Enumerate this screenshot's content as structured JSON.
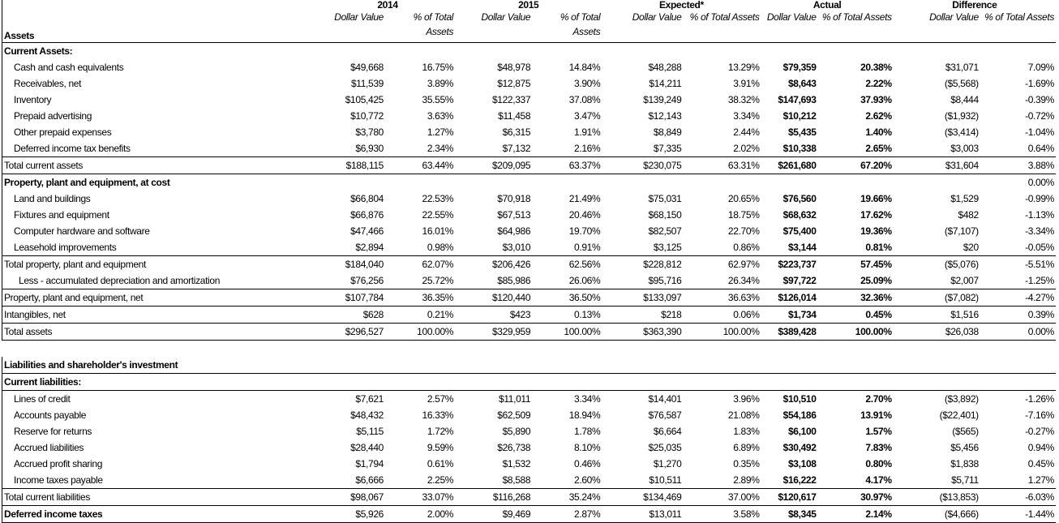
{
  "header": {
    "label": "Assets",
    "groups": [
      "2014",
      "2015",
      "Expected*",
      "Actual",
      "Difference"
    ],
    "columns": [
      "Dollar Value",
      "% of Total Assets",
      "Dollar Value",
      "% of Total Assets",
      "Dollar Value",
      "% of Total Assets",
      "Dollar Value",
      "% of Total Assets",
      "Dollar Value",
      "% of Total Assets"
    ]
  },
  "table": {
    "rows": [
      {
        "label": "Current Assets:"
      },
      {
        "label": "Cash and cash equivalents",
        "cells": [
          "$49,668",
          "16.75%",
          "$48,978",
          "14.84%",
          "$48,288",
          "13.29%",
          "$79,359",
          "20.38%",
          "$31,071",
          "7.09%"
        ]
      },
      {
        "label": "Receivables, net",
        "cells": [
          "$11,539",
          "3.89%",
          "$12,875",
          "3.90%",
          "$14,211",
          "3.91%",
          "$8,643",
          "2.22%",
          "($5,568)",
          "-1.69%"
        ]
      },
      {
        "label": "Inventory",
        "cells": [
          "$105,425",
          "35.55%",
          "$122,337",
          "37.08%",
          "$139,249",
          "38.32%",
          "$147,693",
          "37.93%",
          "$8,444",
          "-0.39%"
        ]
      },
      {
        "label": "Prepaid advertising",
        "cells": [
          "$10,772",
          "3.63%",
          "$11,458",
          "3.47%",
          "$12,143",
          "3.34%",
          "$10,212",
          "2.62%",
          "($1,932)",
          "-0.72%"
        ]
      },
      {
        "label": "Other prepaid expenses",
        "cells": [
          "$3,780",
          "1.27%",
          "$6,315",
          "1.91%",
          "$8,849",
          "2.44%",
          "$5,435",
          "1.40%",
          "($3,414)",
          "-1.04%"
        ]
      },
      {
        "label": "Deferred income tax benefits",
        "cells": [
          "$6,930",
          "2.34%",
          "$7,132",
          "2.16%",
          "$7,335",
          "2.02%",
          "$10,338",
          "2.65%",
          "$3,003",
          "0.64%"
        ]
      },
      {
        "label": "Total current assets",
        "cells": [
          "$188,115",
          "63.44%",
          "$209,095",
          "63.37%",
          "$230,075",
          "63.31%",
          "$261,680",
          "67.20%",
          "$31,604",
          "3.88%"
        ]
      },
      {
        "label": "Property, plant and equipment, at cost",
        "cells": [
          null,
          null,
          null,
          null,
          null,
          null,
          null,
          null,
          null,
          "0.00%"
        ]
      },
      {
        "label": "Land and buildings",
        "cells": [
          "$66,804",
          "22.53%",
          "$70,918",
          "21.49%",
          "$75,031",
          "20.65%",
          "$76,560",
          "19.66%",
          "$1,529",
          "-0.99%"
        ]
      },
      {
        "label": "Fixtures and equipment",
        "cells": [
          "$66,876",
          "22.55%",
          "$67,513",
          "20.46%",
          "$68,150",
          "18.75%",
          "$68,632",
          "17.62%",
          "$482",
          "-1.13%"
        ]
      },
      {
        "label": "Computer hardware and software",
        "cells": [
          "$47,466",
          "16.01%",
          "$64,986",
          "19.70%",
          "$82,507",
          "22.70%",
          "$75,400",
          "19.36%",
          "($7,107)",
          "-3.34%"
        ]
      },
      {
        "label": "Leasehold improvements",
        "cells": [
          "$2,894",
          "0.98%",
          "$3,010",
          "0.91%",
          "$3,125",
          "0.86%",
          "$3,144",
          "0.81%",
          "$20",
          "-0.05%"
        ]
      },
      {
        "label": "Total property, plant and equipment",
        "cells": [
          "$184,040",
          "62.07%",
          "$206,426",
          "62.56%",
          "$228,812",
          "62.97%",
          "$223,737",
          "57.45%",
          "($5,076)",
          "-5.51%"
        ]
      },
      {
        "label": "Less - accumulated depreciation and amortization",
        "cells": [
          "$76,256",
          "25.72%",
          "$85,986",
          "26.06%",
          "$95,716",
          "26.34%",
          "$97,722",
          "25.09%",
          "$2,007",
          "-1.25%"
        ]
      },
      {
        "label": "Property, plant and equipment, net",
        "cells": [
          "$107,784",
          "36.35%",
          "$120,440",
          "36.50%",
          "$133,097",
          "36.63%",
          "$126,014",
          "32.36%",
          "($7,082)",
          "-4.27%"
        ]
      },
      {
        "label": "Intangibles, net",
        "cells": [
          "$628",
          "0.21%",
          "$423",
          "0.13%",
          "$218",
          "0.06%",
          "$1,734",
          "0.45%",
          "$1,516",
          "0.39%"
        ]
      },
      {
        "label": "Total assets",
        "cells": [
          "$296,527",
          "100.00%",
          "$329,959",
          "100.00%",
          "$363,390",
          "100.00%",
          "$389,428",
          "100.00%",
          "$26,038",
          "0.00%"
        ]
      },
      {
        "label": "Liabilities and shareholder's investment"
      },
      {
        "label": "Current liabilities:"
      },
      {
        "label": "Lines of credit",
        "cells": [
          "$7,621",
          "2.57%",
          "$11,011",
          "3.34%",
          "$14,401",
          "3.96%",
          "$10,510",
          "2.70%",
          "($3,892)",
          "-1.26%"
        ]
      },
      {
        "label": "Accounts payable",
        "cells": [
          "$48,432",
          "16.33%",
          "$62,509",
          "18.94%",
          "$76,587",
          "21.08%",
          "$54,186",
          "13.91%",
          "($22,401)",
          "-7.16%"
        ]
      },
      {
        "label": "Reserve for returns",
        "cells": [
          "$5,115",
          "1.72%",
          "$5,890",
          "1.78%",
          "$6,664",
          "1.83%",
          "$6,100",
          "1.57%",
          "($565)",
          "-0.27%"
        ]
      },
      {
        "label": "Accrued liabilities",
        "cells": [
          "$28,440",
          "9.59%",
          "$26,738",
          "8.10%",
          "$25,035",
          "6.89%",
          "$30,492",
          "7.83%",
          "$5,456",
          "0.94%"
        ]
      },
      {
        "label": "Accrued profit sharing",
        "cells": [
          "$1,794",
          "0.61%",
          "$1,532",
          "0.46%",
          "$1,270",
          "0.35%",
          "$3,108",
          "0.80%",
          "$1,838",
          "0.45%"
        ]
      },
      {
        "label": "Income taxes payable",
        "cells": [
          "$6,666",
          "2.25%",
          "$8,588",
          "2.60%",
          "$10,511",
          "2.89%",
          "$16,222",
          "4.17%",
          "$5,711",
          "1.27%"
        ]
      },
      {
        "label": "Total current liabilities",
        "cells": [
          "$98,067",
          "33.07%",
          "$116,268",
          "35.24%",
          "$134,469",
          "37.00%",
          "$120,617",
          "30.97%",
          "($13,853)",
          "-6.03%"
        ]
      },
      {
        "label": "Deferred income taxes",
        "cells": [
          "$5,926",
          "2.00%",
          "$9,469",
          "2.87%",
          "$13,011",
          "3.58%",
          "$8,345",
          "2.14%",
          "($4,666)",
          "-1.44%"
        ]
      }
    ]
  }
}
